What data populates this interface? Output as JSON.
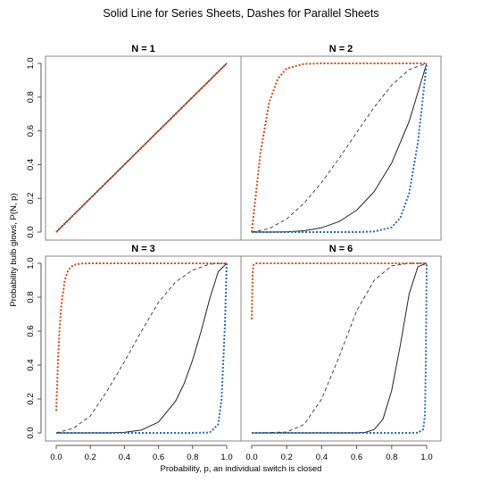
{
  "figure": {
    "title": "Solid Line for Series Sheets, Dashes for Parallel Sheets",
    "xlabel": "Probability, p, an individual switch is closed",
    "ylabel": "Probability bulb glows, P(N, p)"
  },
  "colors": {
    "series_solid": "#222222",
    "parallel_dashed": "#333333",
    "lower_dotted": "#2e6aa8",
    "upper_dotted": "#cc4a16",
    "panel_border": "#888888",
    "axis": "#555555"
  },
  "chart_data": [
    {
      "type": "line",
      "title": "N = 1",
      "N": 1,
      "xlim": [
        0,
        1
      ],
      "ylim": [
        0,
        1
      ],
      "xticks": [
        "0.0",
        "0.2",
        "0.4",
        "0.6",
        "0.8",
        "1.0"
      ],
      "yticks": [
        "0.0",
        "0.2",
        "0.4",
        "0.6",
        "0.8",
        "1.0"
      ],
      "series": [
        {
          "style": "solid",
          "color": "#222222",
          "x": [
            0,
            0.2,
            0.4,
            0.6,
            0.8,
            1.0
          ],
          "y": [
            0,
            0.2,
            0.4,
            0.6,
            0.8,
            1.0
          ]
        },
        {
          "style": "dashed",
          "color": "#333333",
          "x": [
            0,
            0.2,
            0.4,
            0.6,
            0.8,
            1.0
          ],
          "y": [
            0,
            0.2,
            0.4,
            0.6,
            0.8,
            1.0
          ]
        },
        {
          "style": "dotted",
          "color": "#2e6aa8",
          "x": [
            0,
            0.2,
            0.4,
            0.6,
            0.8,
            1.0
          ],
          "y": [
            0,
            0.2,
            0.4,
            0.6,
            0.8,
            1.0
          ]
        },
        {
          "style": "dotted",
          "color": "#cc4a16",
          "x": [
            0,
            0.2,
            0.4,
            0.6,
            0.8,
            1.0
          ],
          "y": [
            0,
            0.2,
            0.4,
            0.6,
            0.8,
            1.0
          ]
        }
      ]
    },
    {
      "type": "line",
      "title": "N = 2",
      "N": 2,
      "xlim": [
        0,
        1
      ],
      "ylim": [
        0,
        1
      ],
      "xticks": [
        "0.0",
        "0.2",
        "0.4",
        "0.6",
        "0.8",
        "1.0"
      ],
      "yticks": [
        "0.0",
        "0.2",
        "0.4",
        "0.6",
        "0.8",
        "1.0"
      ],
      "series": [
        {
          "style": "solid",
          "color": "#222222",
          "x": [
            0,
            0.1,
            0.2,
            0.3,
            0.4,
            0.5,
            0.6,
            0.7,
            0.8,
            0.9,
            1.0
          ],
          "y": [
            0,
            0.0001,
            0.0016,
            0.0081,
            0.0256,
            0.0625,
            0.1296,
            0.2401,
            0.4096,
            0.6561,
            1.0
          ]
        },
        {
          "style": "dashed",
          "color": "#333333",
          "x": [
            0,
            0.1,
            0.2,
            0.3,
            0.4,
            0.5,
            0.6,
            0.7,
            0.8,
            0.9,
            1.0
          ],
          "y": [
            0,
            0.0199,
            0.0784,
            0.1719,
            0.2944,
            0.4375,
            0.5904,
            0.7399,
            0.8704,
            0.9639,
            1.0
          ]
        },
        {
          "style": "dotted",
          "color": "#2e6aa8",
          "x": [
            0,
            0.2,
            0.4,
            0.6,
            0.7,
            0.8,
            0.85,
            0.9,
            0.95,
            1.0
          ],
          "y": [
            0,
            0,
            0,
            0.0003,
            0.0033,
            0.028,
            0.085,
            0.23,
            0.53,
            1.0
          ]
        },
        {
          "style": "dotted",
          "color": "#cc4a16",
          "x": [
            0,
            0.05,
            0.1,
            0.15,
            0.2,
            0.3,
            0.4,
            0.6,
            0.8,
            1.0
          ],
          "y": [
            0,
            0.47,
            0.77,
            0.91,
            0.97,
            0.997,
            1.0,
            1.0,
            1.0,
            1.0
          ]
        }
      ]
    },
    {
      "type": "line",
      "title": "N = 3",
      "N": 3,
      "xlim": [
        0,
        1
      ],
      "ylim": [
        0,
        1
      ],
      "xticks": [
        "0.0",
        "0.2",
        "0.4",
        "0.6",
        "0.8",
        "1.0"
      ],
      "yticks": [
        "0.0",
        "0.2",
        "0.4",
        "0.6",
        "0.8",
        "1.0"
      ],
      "series": [
        {
          "style": "solid",
          "color": "#222222",
          "x": [
            0,
            0.3,
            0.4,
            0.5,
            0.6,
            0.7,
            0.75,
            0.8,
            0.85,
            0.9,
            0.95,
            1.0
          ],
          "y": [
            0,
            0.0003,
            0.003,
            0.017,
            0.064,
            0.187,
            0.29,
            0.43,
            0.6,
            0.79,
            0.95,
            1.0
          ]
        },
        {
          "style": "dashed",
          "color": "#333333",
          "x": [
            0,
            0.1,
            0.2,
            0.3,
            0.4,
            0.5,
            0.6,
            0.7,
            0.8,
            0.9,
            1.0
          ],
          "y": [
            0,
            0.027,
            0.1,
            0.25,
            0.42,
            0.6,
            0.77,
            0.89,
            0.96,
            0.995,
            1.0
          ]
        },
        {
          "style": "dotted",
          "color": "#2e6aa8",
          "x": [
            0,
            0.5,
            0.8,
            0.9,
            0.95,
            0.97,
            0.99,
            1.0
          ],
          "y": [
            0,
            0,
            0,
            0.002,
            0.05,
            0.2,
            0.65,
            1.0
          ]
        },
        {
          "style": "dotted",
          "color": "#cc4a16",
          "x": [
            0,
            0.01,
            0.02,
            0.03,
            0.05,
            0.07,
            0.1,
            0.15,
            0.2,
            0.5,
            1.0
          ],
          "y": [
            0.13,
            0.42,
            0.62,
            0.75,
            0.9,
            0.96,
            0.99,
            0.999,
            1.0,
            1.0,
            1.0
          ]
        }
      ]
    },
    {
      "type": "line",
      "title": "N = 6",
      "N": 6,
      "xlim": [
        0,
        1
      ],
      "ylim": [
        0,
        1
      ],
      "xticks": [
        "0.0",
        "0.2",
        "0.4",
        "0.6",
        "0.8",
        "1.0"
      ],
      "yticks": [
        "0.0",
        "0.2",
        "0.4",
        "0.6",
        "0.8",
        "1.0"
      ],
      "series": [
        {
          "style": "solid",
          "color": "#222222",
          "x": [
            0,
            0.6,
            0.65,
            0.7,
            0.75,
            0.8,
            0.85,
            0.9,
            0.95,
            1.0
          ],
          "y": [
            0,
            0.0002,
            0.0032,
            0.02,
            0.08,
            0.25,
            0.52,
            0.82,
            0.98,
            1.0
          ]
        },
        {
          "style": "dashed",
          "color": "#333333",
          "x": [
            0,
            0.2,
            0.3,
            0.4,
            0.5,
            0.6,
            0.7,
            0.8,
            0.9,
            1.0
          ],
          "y": [
            0,
            0.005,
            0.05,
            0.2,
            0.45,
            0.72,
            0.9,
            0.985,
            1.0,
            1.0
          ]
        },
        {
          "style": "dotted",
          "color": "#2e6aa8",
          "x": [
            0,
            0.9,
            0.95,
            0.98,
            0.99,
            0.995,
            1.0
          ],
          "y": [
            0,
            0,
            0.001,
            0.02,
            0.1,
            0.4,
            1.0
          ]
        },
        {
          "style": "dotted",
          "color": "#cc4a16",
          "x": [
            0,
            0.005,
            0.01,
            0.02,
            0.03,
            0.05,
            0.1,
            1.0
          ],
          "y": [
            0.67,
            0.94,
            0.99,
            0.999,
            1.0,
            1.0,
            1.0,
            1.0
          ]
        }
      ]
    }
  ]
}
